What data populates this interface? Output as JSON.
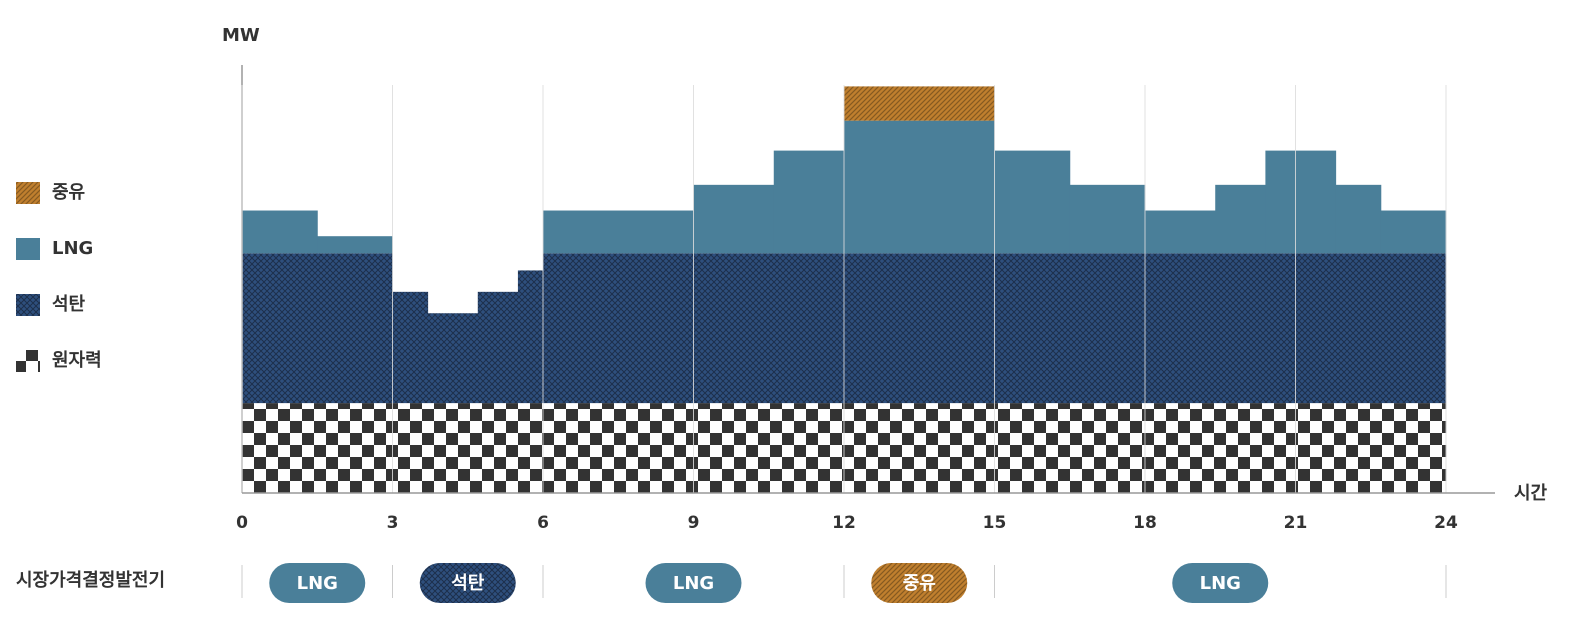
{
  "chart_data": {
    "type": "stacked-step-area",
    "y_label": "MW",
    "x_label": "시간",
    "xlim": [
      0,
      24
    ],
    "xticks": [
      0,
      3,
      6,
      9,
      12,
      15,
      18,
      21,
      24
    ],
    "ylim": [
      0,
      100
    ],
    "grid": true,
    "x": [
      0,
      1.5,
      3,
      3.7,
      4.7,
      5.5,
      6,
      9,
      10.6,
      12,
      15,
      16.5,
      18,
      19.4,
      20.4,
      21.8,
      22.7
    ],
    "series": [
      {
        "name": "원자력",
        "color": "#333333",
        "pattern": "checker",
        "values": [
          21,
          21,
          21,
          21,
          21,
          21,
          21,
          21,
          21,
          21,
          21,
          21,
          21,
          21,
          21,
          21,
          21
        ]
      },
      {
        "name": "석탄",
        "color": "#2e4f7d",
        "pattern": "crosshatch",
        "values": [
          35,
          35,
          26,
          21,
          26,
          31,
          35,
          35,
          35,
          35,
          35,
          35,
          35,
          35,
          35,
          35,
          35
        ]
      },
      {
        "name": "LNG",
        "color": "#4a7f99",
        "pattern": "none",
        "values": [
          10,
          4,
          0,
          0,
          0,
          0,
          10,
          16,
          24,
          31,
          24,
          16,
          10,
          16,
          24,
          16,
          10
        ]
      },
      {
        "name": "중유",
        "color": "#c07f2e",
        "pattern": "diagonal",
        "values": [
          0,
          0,
          0,
          0,
          0,
          0,
          0,
          0,
          0,
          8,
          0,
          0,
          0,
          0,
          0,
          0,
          0
        ]
      }
    ],
    "price_setter": {
      "label": "시장가격결정발전기",
      "segments": [
        {
          "start": 0,
          "end": 3,
          "name": "LNG"
        },
        {
          "start": 3,
          "end": 6,
          "name": "석탄"
        },
        {
          "start": 6,
          "end": 12,
          "name": "LNG"
        },
        {
          "start": 12,
          "end": 15,
          "name": "중유"
        },
        {
          "start": 15,
          "end": 24,
          "name": "LNG"
        }
      ]
    }
  }
}
